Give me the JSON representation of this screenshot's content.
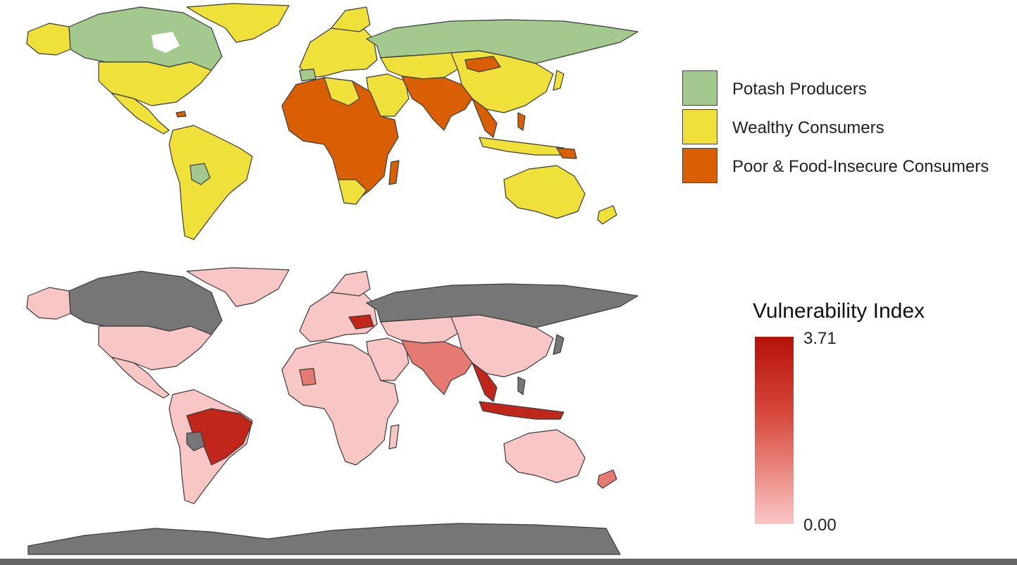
{
  "colors": {
    "potash": "#a3c98e",
    "wealthy": "#efe03a",
    "poor": "#d95f02",
    "nodata": "#767676",
    "vuln_low": "#f9c6c6",
    "vuln_mid": "#e57a72",
    "vuln_high": "#c0261a",
    "border": "#3a3a3a"
  },
  "legend_categories": {
    "items": [
      {
        "label": "Potash Producers",
        "color": "#a3c98e"
      },
      {
        "label": "Wealthy Consumers",
        "color": "#efe03a"
      },
      {
        "label": "Poor & Food-Insecure Consumers",
        "color": "#d95f02"
      }
    ]
  },
  "legend_vulnerability": {
    "title": "Vulnerability Index",
    "max_label": "3.71",
    "min_label": "0.00",
    "min": 0.0,
    "max": 3.71
  }
}
